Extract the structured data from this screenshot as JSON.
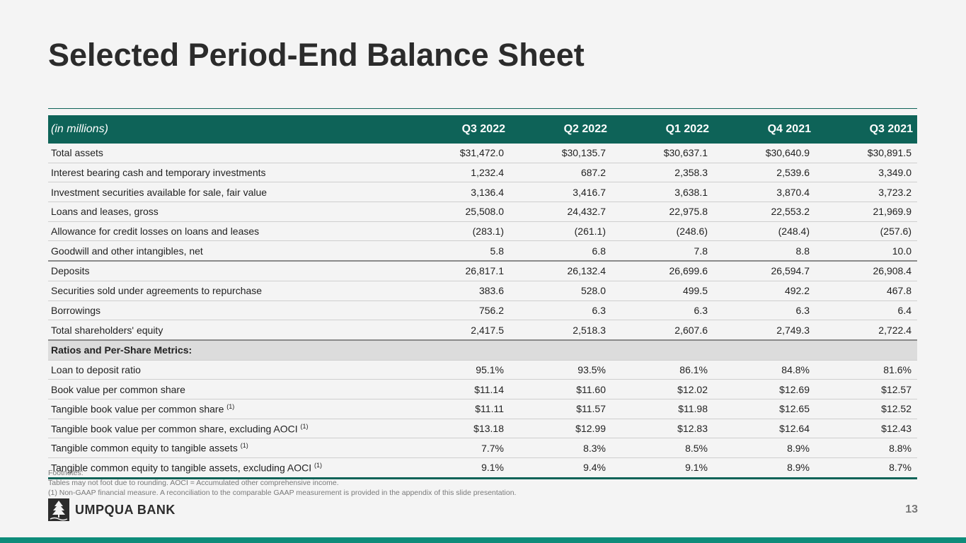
{
  "title": "Selected Period-End Balance Sheet",
  "table": {
    "header": [
      "(in millions)",
      "Q3 2022",
      "Q2 2022",
      "Q1 2022",
      "Q4 2021",
      "Q3 2021"
    ],
    "rows": [
      {
        "label": "Total assets",
        "values": [
          "$31,472.0",
          "$30,135.7",
          "$30,637.1",
          "$30,640.9",
          "$30,891.5"
        ]
      },
      {
        "label": "Interest bearing cash and temporary investments",
        "values": [
          "1,232.4",
          "687.2",
          "2,358.3",
          "2,539.6",
          "3,349.0"
        ]
      },
      {
        "label": "Investment securities available for sale, fair value",
        "values": [
          "3,136.4",
          "3,416.7",
          "3,638.1",
          "3,870.4",
          "3,723.2"
        ]
      },
      {
        "label": "Loans and leases, gross",
        "values": [
          "25,508.0",
          "24,432.7",
          "22,975.8",
          "22,553.2",
          "21,969.9"
        ]
      },
      {
        "label": "Allowance for credit losses on loans and leases",
        "values": [
          "(283.1)",
          "(261.1)",
          "(248.6)",
          "(248.4)",
          "(257.6)"
        ]
      },
      {
        "label": "Goodwill and other intangibles, net",
        "values": [
          "5.8",
          "6.8",
          "7.8",
          "8.8",
          "10.0"
        ]
      },
      {
        "label": "Deposits",
        "values": [
          "26,817.1",
          "26,132.4",
          "26,699.6",
          "26,594.7",
          "26,908.4"
        ]
      },
      {
        "label": "Securities sold under agreements to repurchase",
        "values": [
          "383.6",
          "528.0",
          "499.5",
          "492.2",
          "467.8"
        ]
      },
      {
        "label": "Borrowings",
        "values": [
          "756.2",
          "6.3",
          "6.3",
          "6.3",
          "6.4"
        ]
      },
      {
        "label": "Total shareholders' equity",
        "values": [
          "2,417.5",
          "2,518.3",
          "2,607.6",
          "2,749.3",
          "2,722.4"
        ]
      },
      {
        "section": "Ratios and Per-Share Metrics:"
      },
      {
        "label": "Loan to deposit ratio",
        "values": [
          "95.1%",
          "93.5%",
          "86.1%",
          "84.8%",
          "81.6%"
        ]
      },
      {
        "label": "Book value per common share",
        "values": [
          "$11.14",
          "$11.60",
          "$12.02",
          "$12.69",
          "$12.57"
        ]
      },
      {
        "label": "Tangible book value per common share",
        "note": "(1)",
        "values": [
          "$11.11",
          "$11.57",
          "$11.98",
          "$12.65",
          "$12.52"
        ]
      },
      {
        "label": "Tangible book value per common share, excluding AOCI",
        "note": "(1)",
        "values": [
          "$13.18",
          "$12.99",
          "$12.83",
          "$12.64",
          "$12.43"
        ]
      },
      {
        "label": "Tangible common equity to tangible assets",
        "note": "(1)",
        "values": [
          "7.7%",
          "8.3%",
          "8.5%",
          "8.9%",
          "8.8%"
        ]
      },
      {
        "label": "Tangible common equity to tangible assets, excluding AOCI",
        "note": "(1)",
        "values": [
          "9.1%",
          "9.4%",
          "9.1%",
          "8.9%",
          "8.7%"
        ]
      }
    ]
  },
  "footnotes": [
    "Footnotes:",
    "Tables may not foot due to rounding. AOCI = Accumulated other comprehensive income.",
    "(1)  Non-GAAP financial measure.  A reconciliation to the comparable GAAP measurement is provided in the appendix of this slide presentation."
  ],
  "logo": "UMPQUA BANK",
  "page_number": "13"
}
